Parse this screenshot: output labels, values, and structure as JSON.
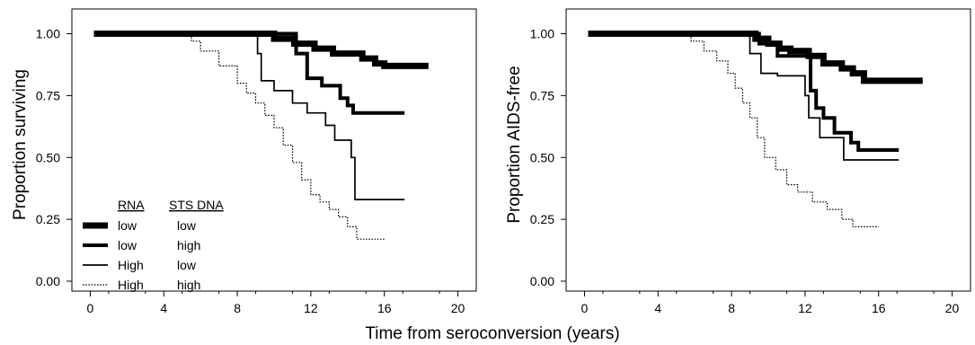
{
  "shared_xlabel": "Time from seroconversion (years)",
  "legend": {
    "header_rna": "RNA",
    "header_sts": "STS DNA",
    "rows": [
      {
        "rna": "low",
        "sts": "low"
      },
      {
        "rna": "low",
        "sts": "high"
      },
      {
        "rna": "High",
        "sts": "low"
      },
      {
        "rna": "High",
        "sts": "high"
      }
    ]
  },
  "chart_data": [
    {
      "type": "line",
      "step": true,
      "ylabel": "Proportion surviving",
      "xlim": [
        -1,
        21
      ],
      "ylim": [
        -0.04,
        1.1
      ],
      "xticks": [
        0,
        4,
        8,
        12,
        16,
        20
      ],
      "yticks": [
        0.0,
        0.25,
        0.5,
        0.75,
        1.0
      ],
      "ytick_labels": [
        "0.00",
        "0.25",
        "0.50",
        "0.75",
        "1.00"
      ],
      "grid": false,
      "series": [
        {
          "legend_index": 0,
          "line_style": "thick-bold",
          "x": [
            0.2,
            10.0,
            11.1,
            12.2,
            13.2,
            14.8,
            15.5,
            16.0,
            18.4
          ],
          "y": [
            1.0,
            0.98,
            0.96,
            0.94,
            0.92,
            0.9,
            0.88,
            0.87,
            0.87
          ]
        },
        {
          "legend_index": 1,
          "line_style": "thick",
          "x": [
            0.2,
            11.2,
            11.8,
            12.6,
            13.6,
            14.0,
            14.3,
            17.1
          ],
          "y": [
            1.0,
            0.92,
            0.82,
            0.79,
            0.74,
            0.71,
            0.68,
            0.68
          ]
        },
        {
          "legend_index": 2,
          "line_style": "solid",
          "x": [
            0.2,
            9.1,
            9.3,
            10.0,
            10.5,
            11.0,
            11.8,
            12.8,
            13.3,
            14.2,
            14.4,
            17.1
          ],
          "y": [
            1.0,
            0.92,
            0.81,
            0.77,
            0.77,
            0.72,
            0.68,
            0.63,
            0.57,
            0.5,
            0.33,
            0.33
          ]
        },
        {
          "legend_index": 3,
          "line_style": "dotted",
          "x": [
            0.2,
            5.5,
            6.0,
            7.0,
            8.0,
            8.5,
            9.0,
            9.5,
            10.0,
            10.5,
            11.0,
            11.5,
            12.0,
            12.5,
            13.0,
            13.5,
            14.0,
            14.5,
            16.0
          ],
          "y": [
            1.0,
            0.97,
            0.93,
            0.87,
            0.8,
            0.76,
            0.72,
            0.67,
            0.62,
            0.55,
            0.48,
            0.41,
            0.35,
            0.32,
            0.29,
            0.26,
            0.22,
            0.17,
            0.17
          ]
        }
      ]
    },
    {
      "type": "line",
      "step": true,
      "ylabel": "Proportion AIDS-free",
      "xlim": [
        -1,
        21
      ],
      "ylim": [
        -0.04,
        1.1
      ],
      "xticks": [
        0,
        4,
        8,
        12,
        16,
        20
      ],
      "yticks": [
        0.0,
        0.25,
        0.5,
        0.75,
        1.0
      ],
      "ytick_labels": [
        "0.00",
        "0.25",
        "0.50",
        "0.75",
        "1.00"
      ],
      "grid": false,
      "series": [
        {
          "legend_index": 0,
          "line_style": "thick-bold",
          "x": [
            0.2,
            9.3,
            10.0,
            10.6,
            11.2,
            12.2,
            13.0,
            14.0,
            14.6,
            15.2,
            18.4
          ],
          "y": [
            1.0,
            0.98,
            0.96,
            0.94,
            0.93,
            0.91,
            0.88,
            0.86,
            0.84,
            0.81,
            0.81
          ]
        },
        {
          "legend_index": 1,
          "line_style": "thick",
          "x": [
            0.2,
            9.5,
            10.5,
            12.3,
            12.6,
            13.0,
            13.6,
            14.5,
            14.9,
            17.1
          ],
          "y": [
            1.0,
            0.96,
            0.91,
            0.77,
            0.7,
            0.66,
            0.6,
            0.56,
            0.53,
            0.53
          ]
        },
        {
          "legend_index": 2,
          "line_style": "solid",
          "x": [
            0.2,
            9.0,
            9.6,
            10.5,
            12.0,
            12.2,
            12.8,
            14.1,
            17.1
          ],
          "y": [
            1.0,
            0.92,
            0.84,
            0.83,
            0.75,
            0.66,
            0.58,
            0.49,
            0.49
          ]
        },
        {
          "legend_index": 3,
          "line_style": "dotted",
          "x": [
            0.2,
            5.8,
            6.5,
            7.2,
            7.8,
            8.2,
            8.6,
            9.0,
            9.4,
            9.8,
            10.4,
            11.0,
            11.6,
            12.4,
            13.2,
            14.0,
            14.6,
            16.0
          ],
          "y": [
            1.0,
            0.97,
            0.93,
            0.89,
            0.84,
            0.78,
            0.72,
            0.66,
            0.58,
            0.5,
            0.45,
            0.39,
            0.36,
            0.32,
            0.29,
            0.25,
            0.22,
            0.22
          ]
        }
      ]
    }
  ]
}
